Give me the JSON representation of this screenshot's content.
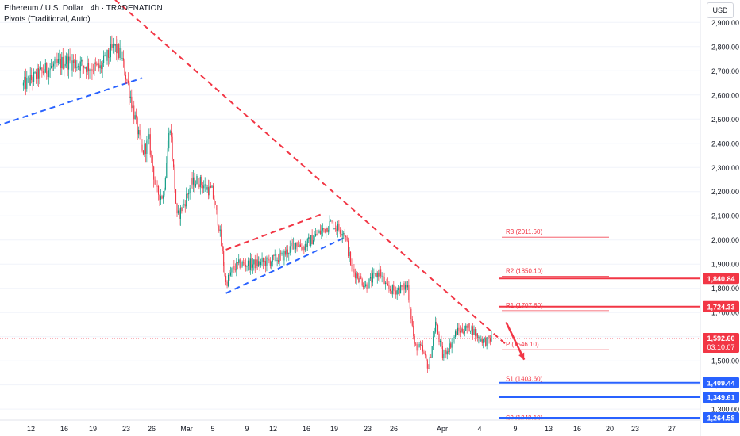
{
  "header": {
    "title": "Ethereum / U.S. Dollar · 4h · TRADENATION",
    "subtitle": "Pivots (Traditional, Auto)",
    "currency": "USD"
  },
  "colors": {
    "up": "#089981",
    "down": "#f23645",
    "resistance": "#f23645",
    "support": "#2962ff",
    "pivot_line": "#f23645",
    "pivot_label": "#f23645"
  },
  "chart_data": {
    "type": "candlestick",
    "symbol": "Ethereum / U.S. Dollar",
    "interval": "4h",
    "ylim": [
      1235,
      2960
    ],
    "y_ticks": [
      1300,
      1400,
      1500,
      1600,
      1700,
      1800,
      1900,
      2000,
      2100,
      2200,
      2300,
      2400,
      2500,
      2600,
      2700,
      2800,
      2900
    ],
    "y_tick_labels": [
      "1,300.00",
      "1,400.00",
      "1,500.00",
      "1,600.00",
      "1,700.00",
      "1,800.00",
      "1,900.00",
      "2,000.00",
      "2,100.00",
      "2,200.00",
      "2,300.00",
      "2,400.00",
      "2,500.00",
      "2,600.00",
      "2,700.00",
      "2,800.00",
      "2,900.00"
    ],
    "x_ticks": [
      "12",
      "16",
      "19",
      "23",
      "26",
      "Mar",
      "5",
      "9",
      "12",
      "16",
      "19",
      "23",
      "26",
      "Apr",
      "4",
      "9",
      "13",
      "16",
      "20",
      "23",
      "27"
    ],
    "price_path": [
      {
        "date": "2025-02-09",
        "price": 2640
      },
      {
        "date": "2025-02-12",
        "price": 2700
      },
      {
        "date": "2025-02-15",
        "price": 2740
      },
      {
        "date": "2025-02-18",
        "price": 2720
      },
      {
        "date": "2025-02-20",
        "price": 2710
      },
      {
        "date": "2025-02-22",
        "price": 2800
      },
      {
        "date": "2025-02-23",
        "price": 2760
      },
      {
        "date": "2025-02-24",
        "price": 2640
      },
      {
        "date": "2025-02-25",
        "price": 2500
      },
      {
        "date": "2025-02-26",
        "price": 2360
      },
      {
        "date": "2025-02-27",
        "price": 2410
      },
      {
        "date": "2025-02-28",
        "price": 2200
      },
      {
        "date": "2025-03-01",
        "price": 2180
      },
      {
        "date": "2025-03-02",
        "price": 2480
      },
      {
        "date": "2025-03-03",
        "price": 2090
      },
      {
        "date": "2025-03-04",
        "price": 2150
      },
      {
        "date": "2025-03-05",
        "price": 2230
      },
      {
        "date": "2025-03-06",
        "price": 2250
      },
      {
        "date": "2025-03-07",
        "price": 2220
      },
      {
        "date": "2025-03-08",
        "price": 2200
      },
      {
        "date": "2025-03-09",
        "price": 2060
      },
      {
        "date": "2025-03-10",
        "price": 1820
      },
      {
        "date": "2025-03-11",
        "price": 1880
      },
      {
        "date": "2025-03-12",
        "price": 1900
      },
      {
        "date": "2025-03-14",
        "price": 1900
      },
      {
        "date": "2025-03-16",
        "price": 1910
      },
      {
        "date": "2025-03-18",
        "price": 1930
      },
      {
        "date": "2025-03-20",
        "price": 1990
      },
      {
        "date": "2025-03-21",
        "price": 1970
      },
      {
        "date": "2025-03-23",
        "price": 2020
      },
      {
        "date": "2025-03-25",
        "price": 2070
      },
      {
        "date": "2025-03-27",
        "price": 2030
      },
      {
        "date": "2025-03-28",
        "price": 1880
      },
      {
        "date": "2025-03-30",
        "price": 1810
      },
      {
        "date": "2025-04-01",
        "price": 1870
      },
      {
        "date": "2025-04-02",
        "price": 1800
      },
      {
        "date": "2025-04-03",
        "price": 1790
      },
      {
        "date": "2025-04-05",
        "price": 1810
      },
      {
        "date": "2025-04-06",
        "price": 1560
      },
      {
        "date": "2025-04-07",
        "price": 1550
      },
      {
        "date": "2025-04-08",
        "price": 1470
      },
      {
        "date": "2025-04-09",
        "price": 1660
      },
      {
        "date": "2025-04-10",
        "price": 1520
      },
      {
        "date": "2025-04-11",
        "price": 1560
      },
      {
        "date": "2025-04-12",
        "price": 1620
      },
      {
        "date": "2025-04-13",
        "price": 1630
      },
      {
        "date": "2025-04-14",
        "price": 1640
      },
      {
        "date": "2025-04-15",
        "price": 1600
      },
      {
        "date": "2025-04-16",
        "price": 1580
      },
      {
        "date": "2025-04-17",
        "price": 1592
      }
    ],
    "pivots": [
      {
        "label": "R3 (2011.60)",
        "value": 2011.6
      },
      {
        "label": "R2 (1850.10)",
        "value": 1850.1
      },
      {
        "label": "R1 (1707.60)",
        "value": 1707.6
      },
      {
        "label": "P (1546.10)",
        "value": 1546.1
      },
      {
        "label": "S1 (1403.60)",
        "value": 1403.6
      },
      {
        "label": "S2 (1242.10)",
        "value": 1242.1
      }
    ],
    "horizontal_levels": [
      {
        "label": "1,840.84",
        "value": 1840.84,
        "kind": "resistance"
      },
      {
        "label": "1,724.33",
        "value": 1724.33,
        "kind": "resistance"
      },
      {
        "label": "1,409.44",
        "value": 1409.44,
        "kind": "support"
      },
      {
        "label": "1,349.61",
        "value": 1349.61,
        "kind": "support"
      },
      {
        "label": "1,264.58",
        "value": 1264.58,
        "kind": "support"
      }
    ],
    "trendlines": [
      {
        "kind": "resistance",
        "style": "dashed",
        "from": {
          "date": "2025-02-16",
          "price": 3150
        },
        "to": {
          "date": "2025-04-19",
          "price": 1570
        }
      },
      {
        "kind": "support",
        "style": "dashed",
        "from": {
          "date": "2025-02-05",
          "price": 2470
        },
        "to": {
          "date": "2025-02-26",
          "price": 2670
        }
      },
      {
        "kind": "resistance",
        "style": "dashed",
        "from": {
          "date": "2025-03-10",
          "price": 1960
        },
        "to": {
          "date": "2025-03-24",
          "price": 2110
        }
      },
      {
        "kind": "support",
        "style": "dashed",
        "from": {
          "date": "2025-03-10",
          "price": 1780
        },
        "to": {
          "date": "2025-03-27",
          "price": 2010
        }
      }
    ],
    "last_price": {
      "value": 1592.6,
      "label": "1,592.60",
      "countdown": "03:10:07"
    },
    "projection": {
      "from": {
        "date": "2025-04-20",
        "price": 1660
      },
      "to": {
        "date": "2025-04-21",
        "price": 1505
      }
    }
  }
}
